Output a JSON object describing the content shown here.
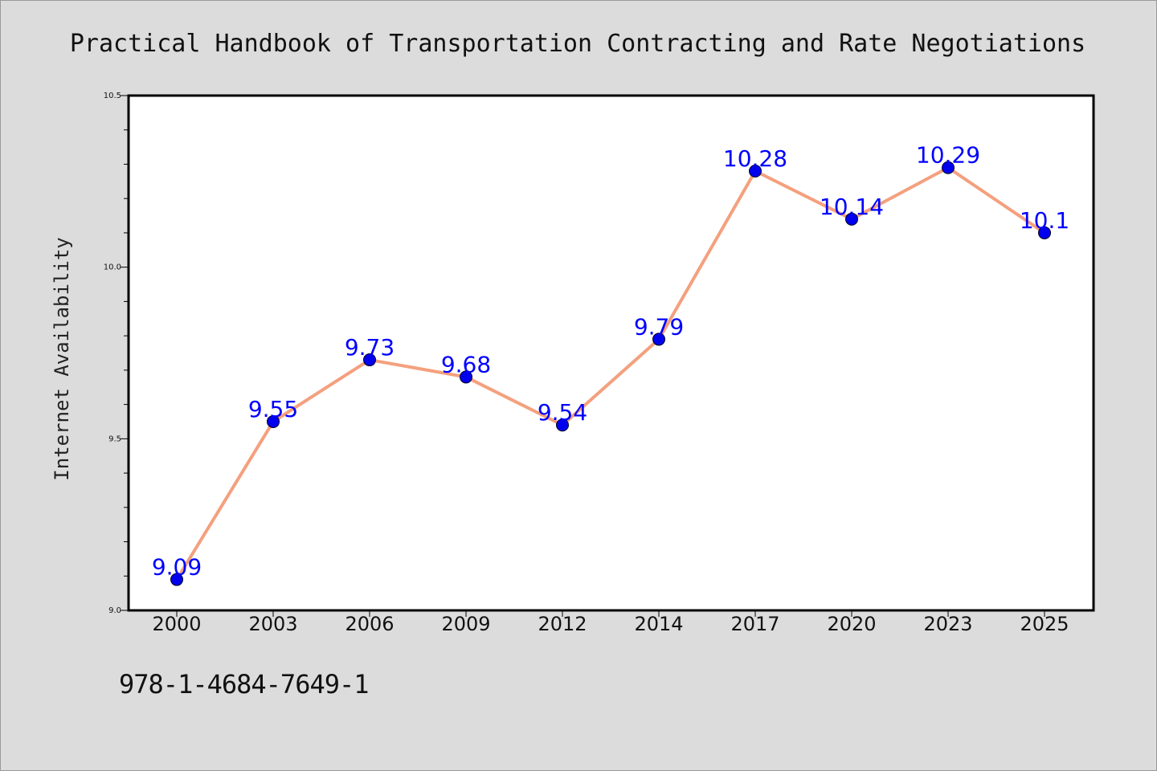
{
  "isbn": "978-1-4684-7649-1",
  "chart_data": {
    "type": "line",
    "title": "Practical Handbook of Transportation Contracting and Rate Negotiations",
    "xlabel": "",
    "ylabel": "Internet Availability",
    "categories": [
      "2000",
      "2003",
      "2006",
      "2009",
      "2012",
      "2014",
      "2017",
      "2020",
      "2023",
      "2025"
    ],
    "values": [
      9.09,
      9.55,
      9.73,
      9.68,
      9.54,
      9.79,
      10.28,
      10.14,
      10.29,
      10.1
    ],
    "data_labels": [
      "9.09",
      "9.55",
      "9.73",
      "9.68",
      "9.54",
      "9.79",
      "10.28",
      "10.14",
      "10.29",
      "10.1"
    ],
    "ylim": [
      9.0,
      10.5
    ],
    "yticks": [
      "9.0",
      "9.5",
      "10.0",
      "10.5"
    ],
    "grid": false,
    "legend": "none",
    "colors": {
      "line": "#f4a07e",
      "marker": "#0000ee",
      "label": "#0000ff",
      "background": "#dcdcdc",
      "plot_area": "#ffffff"
    }
  }
}
